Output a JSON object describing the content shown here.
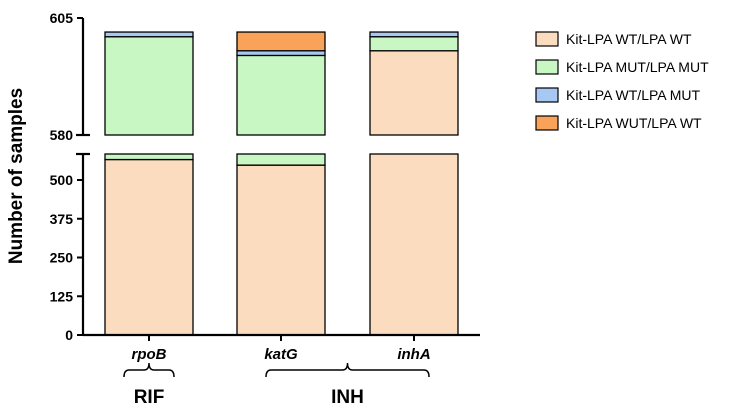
{
  "chart_data": {
    "type": "bar",
    "stacked": true,
    "broken_y_axis": true,
    "title": "",
    "ylabel": "Number of samples",
    "xlabel": "",
    "categories": [
      "rpoB",
      "katG",
      "inhA"
    ],
    "groups": [
      {
        "label": "RIF",
        "categories": [
          "rpoB"
        ]
      },
      {
        "label": "INH",
        "categories": [
          "katG",
          "inhA"
        ]
      }
    ],
    "y_segments": [
      {
        "range": [
          0,
          500
        ],
        "ticks": [
          0,
          125,
          250,
          375,
          500
        ]
      },
      {
        "range": [
          580,
          605
        ],
        "ticks": [
          580,
          605
        ]
      }
    ],
    "series": [
      {
        "name": "Kit-LPA WT/LPA WT",
        "color": "#FCDCBF",
        "values": [
          566,
          548,
          598
        ]
      },
      {
        "name": "Kit-LPA MUT/LPA MUT",
        "color": "#C9F7C3",
        "values": [
          35,
          49,
          3
        ]
      },
      {
        "name": "Kit-LPA WT/LPA MUT",
        "color": "#A7C8F2",
        "values": [
          1,
          1,
          1
        ]
      },
      {
        "name": "Kit-LPA WUT/LPA WT",
        "color": "#F9A35A",
        "values": [
          0,
          4,
          0
        ]
      }
    ],
    "legend_position": "right",
    "grid": false
  }
}
